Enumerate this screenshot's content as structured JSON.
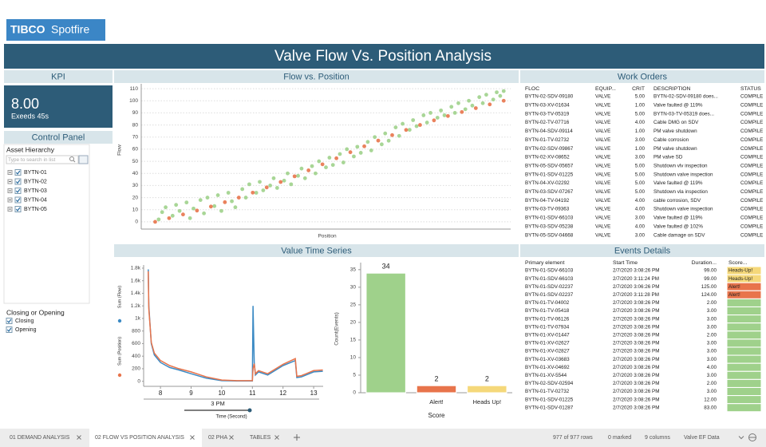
{
  "logo": {
    "brand": "TIBCO",
    "product": "Spotfire"
  },
  "header": {
    "title": "Valve Flow Vs. Position Analysis"
  },
  "kpi": {
    "title": "KPI",
    "value": "8.00",
    "caption": "Exeeds 45s"
  },
  "control_panel": {
    "title": "Control Panel",
    "hierarchy_label": "Asset Hierarchy",
    "search_placeholder": "Type to search in list",
    "items": [
      "BYTN-01",
      "BYTN-02",
      "BYTN-03",
      "BYTN-04",
      "BYTN-05"
    ],
    "filter_label": "Closing or Opening",
    "filter_options": [
      "Closing",
      "Opening"
    ]
  },
  "flow_chart": {
    "title": "Flow vs. Position",
    "type": "scatter",
    "x_label": "Position",
    "y_label": "Flow",
    "xlim": [
      -4,
      102
    ],
    "ylim": [
      -6,
      114
    ],
    "yticks": [
      0,
      10,
      20,
      30,
      40,
      50,
      60,
      70,
      80,
      90,
      100,
      110
    ],
    "grid": true,
    "series": [
      {
        "color": "#9fd18b",
        "x": [
          1,
          2,
          3,
          5,
          6,
          7,
          9,
          10,
          11,
          13,
          14,
          15,
          17,
          18,
          19,
          21,
          22,
          23,
          25,
          26,
          27,
          29,
          30,
          31,
          33,
          34,
          35,
          37,
          38,
          39,
          41,
          42,
          43,
          45,
          46,
          47,
          49,
          50,
          51,
          53,
          54,
          55,
          57,
          58,
          59,
          61,
          62,
          63,
          65,
          66,
          67,
          69,
          70,
          71,
          73,
          74,
          75,
          77,
          78,
          79,
          81,
          82,
          83,
          85,
          86,
          87,
          89,
          90,
          91,
          93,
          94,
          95,
          97,
          98,
          99,
          100
        ],
        "values": [
          2,
          8,
          12,
          5,
          14,
          9,
          16,
          3,
          11,
          18,
          7,
          20,
          13,
          22,
          9,
          24,
          17,
          12,
          27,
          20,
          31,
          24,
          33,
          26,
          30,
          36,
          28,
          34,
          40,
          31,
          38,
          44,
          36,
          46,
          40,
          50,
          45,
          53,
          47,
          56,
          49,
          60,
          54,
          62,
          57,
          66,
          59,
          70,
          64,
          73,
          67,
          78,
          71,
          81,
          76,
          84,
          79,
          88,
          82,
          90,
          86,
          92,
          88,
          95,
          90,
          98,
          93,
          100,
          96,
          103,
          98,
          105,
          101,
          107,
          104,
          108
        ]
      },
      {
        "color": "#e8744b",
        "x": [
          0,
          4,
          8,
          12,
          16,
          20,
          24,
          28,
          32,
          36,
          40,
          44,
          48,
          52,
          56,
          60,
          64,
          68,
          72,
          76,
          80,
          84,
          88,
          92,
          96,
          100
        ],
        "values": [
          0,
          3,
          6.1,
          9.3,
          12.6,
          16.2,
          20,
          24.1,
          28.4,
          32.9,
          37.6,
          42.5,
          47.5,
          52.5,
          57.5,
          62.4,
          67.1,
          71.6,
          75.9,
          80,
          83.8,
          87.4,
          90.7,
          93.9,
          97,
          100
        ]
      }
    ]
  },
  "time_series": {
    "title": "Value Time Series",
    "line_chart": {
      "type": "line",
      "x_label": "Time (Second)",
      "x_group_label": "3 PM",
      "xlim": [
        7.45,
        13.31
      ],
      "xticks": [
        8,
        9,
        10,
        11,
        12,
        13
      ],
      "ylim": [
        -80,
        1850
      ],
      "yticks": [
        0,
        200,
        400,
        600,
        800,
        {
          "value": 1000,
          "label": "1k"
        },
        {
          "value": 1200,
          "label": "1.2k"
        },
        {
          "value": 1400,
          "label": "1.4k"
        },
        {
          "value": 1600,
          "label": "1.6k"
        },
        {
          "value": 1800,
          "label": "1.8k"
        }
      ],
      "x": [
        7.6,
        7.62,
        7.7,
        7.8,
        8,
        8.3,
        8.6,
        9,
        9.5,
        10,
        10.5,
        11,
        11.02,
        11.06,
        11.1,
        11.2,
        11.5,
        12,
        12.4,
        12.45,
        12.6,
        13,
        13.3
      ],
      "series": [
        {
          "name": "Sum (Flow)",
          "color": "#3b8ac4",
          "values": [
            1780,
            1200,
            600,
            420,
            300,
            220,
            180,
            120,
            50,
            10,
            5,
            5,
            1200,
            300,
            100,
            150,
            100,
            250,
            330,
            60,
            70,
            150,
            160
          ]
        },
        {
          "name": "Sum (Position)",
          "color": "#e8744b",
          "values": [
            1750,
            1150,
            620,
            450,
            330,
            250,
            200,
            150,
            70,
            20,
            10,
            10,
            200,
            280,
            120,
            170,
            120,
            270,
            360,
            80,
            90,
            170,
            180
          ]
        }
      ]
    },
    "bar_chart": {
      "type": "bar",
      "x_label": "Score",
      "y_label": "Count(Events)",
      "categories": [
        null,
        "Alert!",
        "Heads Up!"
      ],
      "values": [
        34,
        2,
        2
      ],
      "colors": [
        "#9fd18b",
        "#e8744b",
        "#f5d87a"
      ],
      "ylim": [
        0,
        37
      ],
      "yticks": [
        0,
        5,
        10,
        15,
        20,
        25,
        30,
        35
      ]
    }
  },
  "work_orders": {
    "title": "Work Orders",
    "columns": [
      "FLOC",
      "EQUIP...",
      "CRIT",
      "DESCRIPTION",
      "STATUS"
    ],
    "rows": [
      [
        "BYTN-02-SDV-09180",
        "VALVE",
        "5.00",
        "BYTN-02-SDV-09180 does...",
        "COMPILE"
      ],
      [
        "BYTN-03-XV-01634",
        "VALVE",
        "1.00",
        "Valve faulted @ 119%",
        "COMPILE"
      ],
      [
        "BYTN-03-TV-05319",
        "VALVE",
        "5.00",
        "BYTN-03-TV-05319 does...",
        "COMPILE"
      ],
      [
        "BYTN-02-TV-07716",
        "VALVE",
        "4.00",
        "Cable DMG on SDV",
        "COMPILE"
      ],
      [
        "BYTN-04-SDV-09114",
        "VALVE",
        "1.00",
        "PM valve shutdown",
        "COMPILE"
      ],
      [
        "BYTN-01-TV-02732",
        "VALVE",
        "3.00",
        "Cable corrosion",
        "COMPILE"
      ],
      [
        "BYTN-02-SDV-09867",
        "VALVE",
        "1.00",
        "PM valve shutdown",
        "COMPILE"
      ],
      [
        "BYTN-02-XV-08652",
        "VALVE",
        "3.00",
        "PM valve SD",
        "COMPILE"
      ],
      [
        "BYTN-05-SDV-05657",
        "VALVE",
        "5.00",
        "Shutdown vlv inspection",
        "COMPILE"
      ],
      [
        "BYTN-01-SDV-01225",
        "VALVE",
        "5.00",
        "Shutdown valve inspection",
        "COMPILE"
      ],
      [
        "BYTN-04-XV-02292",
        "VALVE",
        "5.00",
        "Valve faulted @ 119%",
        "COMPILE"
      ],
      [
        "BYTN-03-SDV-07267",
        "VALVE",
        "5.00",
        "Shutdown vla inspection",
        "COMPILE"
      ],
      [
        "BYTN-04-TV-04192",
        "VALVE",
        "4.00",
        "cable corrosion, SDV",
        "COMPILE"
      ],
      [
        "BYTN-03-TV-09363",
        "VALVE",
        "4.00",
        "Shutdown valve inspection",
        "COMPILE"
      ],
      [
        "BYTN-01-SDV-66103",
        "VALVE",
        "3.00",
        "Valve faulted @ 119%",
        "COMPILE"
      ],
      [
        "BYTN-03-SDV-05238",
        "VALVE",
        "4.00",
        "Valve faulted @ 102%",
        "COMPILE"
      ],
      [
        "BYTN-05-SDV-04668",
        "VALVE",
        "3.00",
        "Cable damage on SDV",
        "COMPILE"
      ]
    ]
  },
  "events": {
    "title": "Events Details",
    "columns": [
      "Primary element",
      "Start Time",
      "Duration...",
      "Score..."
    ],
    "rows": [
      [
        "BYTN-01-SDV-66103",
        "2/7/2020 3:08:26 PM",
        "99.00",
        "Heads-Up!"
      ],
      [
        "BYTN-01-SDV-66103",
        "2/7/2020 3:11:24 PM",
        "99.00",
        "Heads-Up!"
      ],
      [
        "BYTN-01-SDV-02237",
        "2/7/2020 3:06:26 PM",
        "125.00",
        "Alert!"
      ],
      [
        "BYTN-01-SDV-02237",
        "2/7/2020 3:11:28 PM",
        "124.00",
        "Alert!"
      ],
      [
        "BYTN-01-TV-04002",
        "2/7/2020 3:08:26 PM",
        "2.00",
        null
      ],
      [
        "BYTN-01-TV-05418",
        "2/7/2020 3:08:26 PM",
        "3.00",
        null
      ],
      [
        "BYTN-01-TV-06126",
        "2/7/2020 3:08:26 PM",
        "3.00",
        null
      ],
      [
        "BYTN-01-TV-07934",
        "2/7/2020 3:08:26 PM",
        "3.00",
        null
      ],
      [
        "BYTN-01-XV-01447",
        "2/7/2020 3:08:26 PM",
        "2.00",
        null
      ],
      [
        "BYTN-01-XV-02627",
        "2/7/2020 3:08:26 PM",
        "3.00",
        null
      ],
      [
        "BYTN-01-XV-02827",
        "2/7/2020 3:08:26 PM",
        "3.00",
        null
      ],
      [
        "BYTN-01-XV-03683",
        "2/7/2020 3:08:26 PM",
        "3.00",
        null
      ],
      [
        "BYTN-01-XV-04692",
        "2/7/2020 3:08:26 PM",
        "4.00",
        null
      ],
      [
        "BYTN-01-XV-5544",
        "2/7/2020 3:08:26 PM",
        "3.00",
        null
      ],
      [
        "BYTN-02-SDV-02594",
        "2/7/2020 3:08:26 PM",
        "2.00",
        null
      ],
      [
        "BYTN-01-TV-02732",
        "2/7/2020 3:08:26 PM",
        "3.00",
        null
      ],
      [
        "BYTN-01-SDV-01225",
        "2/7/2020 3:08:26 PM",
        "12.00",
        null
      ],
      [
        "BYTN-01-SDV-01287",
        "2/7/2020 3:08:26 PM",
        "83.00",
        null
      ]
    ]
  },
  "tabs": [
    "01 DEMAND ANALYSIS",
    "02 FLOW VS POSITION ANALYSIS",
    "02 PHA",
    "TABLES"
  ],
  "active_tab": 1,
  "status": [
    "977 of 977 rows",
    "0 marked",
    "9 columns",
    "Valve EF Data"
  ]
}
